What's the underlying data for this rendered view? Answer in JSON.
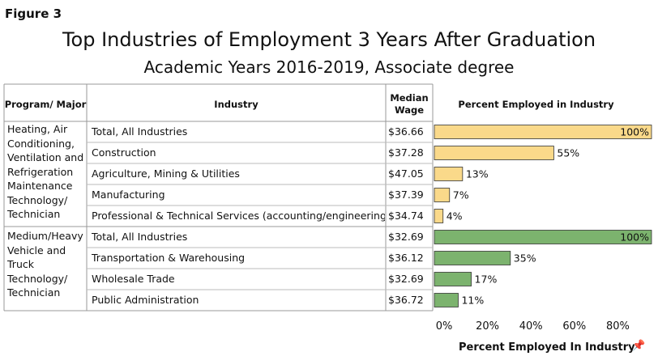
{
  "figure_label": "Figure 3",
  "title": "Top Industries of Employment 3 Years After Graduation",
  "subtitle": "Academic Years 2016-2019, Associate degree",
  "headers": {
    "program": "Program/ Major",
    "industry": "Industry",
    "wage": "Median Wage",
    "percent": "Percent Employed in Industry"
  },
  "groups": [
    {
      "program": "Heating, Air Conditioning, Ventilation and Refrigeration Maintenance Technology/ Technician",
      "color": "#FAD98A",
      "rows": [
        {
          "industry": "Total, All Industries",
          "wage": "$36.66",
          "pct": 100,
          "label": "100%"
        },
        {
          "industry": "Construction",
          "wage": "$37.28",
          "pct": 55,
          "label": "55%"
        },
        {
          "industry": "Agriculture, Mining & Utilities",
          "wage": "$47.05",
          "pct": 13,
          "label": "13%"
        },
        {
          "industry": "Manufacturing",
          "wage": "$37.39",
          "pct": 7,
          "label": "7%"
        },
        {
          "industry": "Professional & Technical Services (accounting/engineering)",
          "wage": "$34.74",
          "pct": 4,
          "label": "4%"
        }
      ]
    },
    {
      "program": "Medium/Heavy Vehicle and Truck Technology/ Technician",
      "color": "#7CB36E",
      "rows": [
        {
          "industry": "Total, All Industries",
          "wage": "$32.69",
          "pct": 100,
          "label": "100%"
        },
        {
          "industry": "Transportation & Warehousing",
          "wage": "$36.12",
          "pct": 35,
          "label": "35%"
        },
        {
          "industry": "Wholesale Trade",
          "wage": "$32.69",
          "pct": 17,
          "label": "17%"
        },
        {
          "industry": "Public Administration",
          "wage": "$36.72",
          "pct": 11,
          "label": "11%"
        }
      ]
    }
  ],
  "chart_data": {
    "type": "bar",
    "orientation": "horizontal",
    "categories": [
      "Total, All Industries",
      "Construction",
      "Agriculture, Mining & Utilities",
      "Manufacturing",
      "Professional & Technical Services (accounting/engineering)",
      "Total, All Industries",
      "Transportation & Warehousing",
      "Wholesale Trade",
      "Public Administration"
    ],
    "values": [
      100,
      55,
      13,
      7,
      4,
      100,
      35,
      17,
      11
    ],
    "data_labels": [
      "100%",
      "55%",
      "13%",
      "7%",
      "4%",
      "100%",
      "35%",
      "17%",
      "11%"
    ],
    "xlabel": "Percent Employed In Industry",
    "xticks": [
      "0%",
      "20%",
      "40%",
      "60%",
      "80%"
    ],
    "xlim": [
      0,
      100
    ],
    "grid": false
  }
}
